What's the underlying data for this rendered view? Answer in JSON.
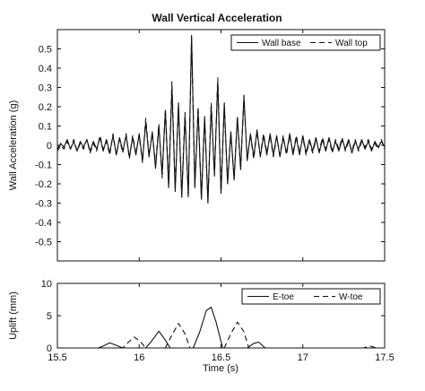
{
  "chart_data": [
    {
      "type": "line",
      "title": "Wall Vertical Acceleration",
      "xlabel": "",
      "ylabel": "Wall Acceleration (g)",
      "xlim": [
        15.5,
        17.5
      ],
      "ylim": [
        -0.6,
        0.6
      ],
      "yticks": [
        -0.5,
        -0.4,
        -0.3,
        -0.2,
        -0.1,
        0,
        0.1,
        0.2,
        0.3,
        0.4,
        0.5
      ],
      "ytick_labels": [
        "-0.5",
        "-0.4",
        "-0.3",
        "-0.2",
        "-0.1",
        "0",
        "0.1",
        "0.2",
        "0.3",
        "0.4",
        "0.5"
      ],
      "grid": false,
      "legend_position": "top-right",
      "series": [
        {
          "name": "Wall base",
          "style": "solid",
          "x": [
            15.5,
            15.52,
            15.54,
            15.56,
            15.58,
            15.6,
            15.62,
            15.64,
            15.66,
            15.68,
            15.7,
            15.72,
            15.74,
            15.76,
            15.78,
            15.8,
            15.82,
            15.84,
            15.86,
            15.88,
            15.9,
            15.92,
            15.94,
            15.96,
            15.98,
            16.0,
            16.02,
            16.04,
            16.06,
            16.08,
            16.1,
            16.12,
            16.14,
            16.16,
            16.18,
            16.2,
            16.22,
            16.24,
            16.26,
            16.28,
            16.3,
            16.32,
            16.34,
            16.36,
            16.38,
            16.4,
            16.42,
            16.44,
            16.46,
            16.48,
            16.5,
            16.52,
            16.54,
            16.56,
            16.58,
            16.6,
            16.62,
            16.64,
            16.66,
            16.68,
            16.7,
            16.72,
            16.74,
            16.76,
            16.78,
            16.8,
            16.82,
            16.84,
            16.86,
            16.88,
            16.9,
            16.92,
            16.94,
            16.96,
            16.98,
            17.0,
            17.02,
            17.04,
            17.06,
            17.08,
            17.1,
            17.12,
            17.14,
            17.16,
            17.18,
            17.2,
            17.22,
            17.24,
            17.26,
            17.28,
            17.3,
            17.32,
            17.34,
            17.36,
            17.38,
            17.4,
            17.42,
            17.44,
            17.46,
            17.48,
            17.5
          ],
          "y": [
            -0.02,
            0.01,
            -0.01,
            0.03,
            -0.02,
            0.02,
            -0.03,
            0.02,
            -0.01,
            0.03,
            -0.03,
            0.02,
            -0.02,
            0.04,
            -0.03,
            0.03,
            -0.04,
            0.05,
            -0.05,
            0.04,
            -0.03,
            0.05,
            -0.06,
            0.04,
            -0.05,
            0.06,
            -0.08,
            0.12,
            -0.06,
            0.07,
            -0.12,
            0.1,
            -0.15,
            0.18,
            -0.22,
            0.3,
            -0.24,
            0.22,
            -0.27,
            0.15,
            -0.26,
            0.57,
            -0.22,
            0.18,
            -0.28,
            0.15,
            -0.3,
            0.2,
            -0.15,
            0.33,
            -0.25,
            0.22,
            -0.2,
            0.07,
            -0.18,
            0.14,
            -0.12,
            0.25,
            -0.08,
            0.06,
            -0.06,
            0.08,
            -0.06,
            0.05,
            -0.05,
            0.06,
            -0.05,
            0.05,
            -0.06,
            0.04,
            -0.04,
            0.06,
            -0.05,
            0.04,
            -0.05,
            0.05,
            -0.04,
            0.03,
            -0.03,
            0.04,
            -0.04,
            0.03,
            -0.03,
            0.04,
            -0.03,
            0.02,
            -0.03,
            0.03,
            -0.02,
            0.03,
            -0.04,
            0.02,
            -0.02,
            0.03,
            -0.02,
            0.02,
            -0.03,
            0.02,
            -0.01,
            0.02,
            -0.01
          ]
        },
        {
          "name": "Wall top",
          "style": "dashed",
          "x": [
            15.5,
            15.52,
            15.54,
            15.56,
            15.58,
            15.6,
            15.62,
            15.64,
            15.66,
            15.68,
            15.7,
            15.72,
            15.74,
            15.76,
            15.78,
            15.8,
            15.82,
            15.84,
            15.86,
            15.88,
            15.9,
            15.92,
            15.94,
            15.96,
            15.98,
            16.0,
            16.02,
            16.04,
            16.06,
            16.08,
            16.1,
            16.12,
            16.14,
            16.16,
            16.18,
            16.2,
            16.22,
            16.24,
            16.26,
            16.28,
            16.3,
            16.32,
            16.34,
            16.36,
            16.38,
            16.4,
            16.42,
            16.44,
            16.46,
            16.48,
            16.5,
            16.52,
            16.54,
            16.56,
            16.58,
            16.6,
            16.62,
            16.64,
            16.66,
            16.68,
            16.7,
            16.72,
            16.74,
            16.76,
            16.78,
            16.8,
            16.82,
            16.84,
            16.86,
            16.88,
            16.9,
            16.92,
            16.94,
            16.96,
            16.98,
            17.0,
            17.02,
            17.04,
            17.06,
            17.08,
            17.1,
            17.12,
            17.14,
            17.16,
            17.18,
            17.2,
            17.22,
            17.24,
            17.26,
            17.28,
            17.3,
            17.32,
            17.34,
            17.36,
            17.38,
            17.4,
            17.42,
            17.44,
            17.46,
            17.48,
            17.5
          ],
          "y": [
            -0.03,
            0.0,
            -0.02,
            0.02,
            -0.02,
            0.03,
            -0.03,
            0.01,
            -0.02,
            0.03,
            -0.04,
            0.01,
            -0.03,
            0.05,
            -0.02,
            0.02,
            -0.05,
            0.06,
            -0.05,
            0.03,
            -0.04,
            0.06,
            -0.07,
            0.05,
            -0.04,
            0.05,
            -0.09,
            0.14,
            -0.05,
            0.06,
            -0.1,
            0.11,
            -0.17,
            0.19,
            -0.2,
            0.33,
            -0.22,
            0.2,
            -0.25,
            0.17,
            -0.27,
            0.56,
            -0.21,
            0.2,
            -0.27,
            0.14,
            -0.29,
            0.22,
            -0.16,
            0.35,
            -0.24,
            0.2,
            -0.19,
            0.06,
            -0.17,
            0.15,
            -0.13,
            0.26,
            -0.07,
            0.05,
            -0.07,
            0.07,
            -0.05,
            0.06,
            -0.04,
            0.05,
            -0.06,
            0.04,
            -0.05,
            0.05,
            -0.05,
            0.05,
            -0.04,
            0.05,
            -0.04,
            0.04,
            -0.05,
            0.02,
            -0.04,
            0.03,
            -0.03,
            0.04,
            -0.02,
            0.03,
            -0.04,
            0.03,
            -0.02,
            0.04,
            -0.03,
            0.02,
            -0.03,
            0.03,
            -0.03,
            0.02,
            -0.01,
            0.03,
            -0.02,
            0.01,
            -0.02,
            0.03,
            -0.02
          ]
        }
      ]
    },
    {
      "type": "line",
      "title": "",
      "xlabel": "Time (s)",
      "ylabel": "Uplift (mm)",
      "xlim": [
        15.5,
        17.5
      ],
      "ylim": [
        0,
        10
      ],
      "xticks": [
        15.5,
        16,
        16.5,
        17,
        17.5
      ],
      "xtick_labels": [
        "15.5",
        "16",
        "16.5",
        "17",
        "17.5"
      ],
      "yticks": [
        0,
        5,
        10
      ],
      "ytick_labels": [
        "0",
        "5",
        "10"
      ],
      "grid": false,
      "legend_position": "top-right",
      "series": [
        {
          "name": "E-toe",
          "style": "solid",
          "x": [
            15.5,
            15.75,
            15.78,
            15.82,
            15.86,
            15.9,
            15.93,
            16.04,
            16.08,
            16.12,
            16.16,
            16.19,
            16.33,
            16.37,
            16.41,
            16.44,
            16.47,
            16.51,
            16.66,
            16.7,
            16.73,
            16.77,
            17.5
          ],
          "y": [
            0,
            0,
            0.3,
            0.8,
            0.4,
            0,
            0,
            0,
            1.2,
            2.6,
            1.2,
            0,
            0,
            2.5,
            5.8,
            6.3,
            4.0,
            0,
            0,
            0.7,
            0.9,
            0,
            0
          ]
        },
        {
          "name": "W-toe",
          "style": "dashed",
          "x": [
            15.5,
            15.9,
            15.93,
            15.97,
            16.01,
            16.04,
            16.16,
            16.2,
            16.24,
            16.28,
            16.31,
            16.52,
            16.56,
            16.6,
            16.64,
            16.67,
            17.37,
            17.41,
            17.45,
            17.5
          ],
          "y": [
            0,
            0,
            0.8,
            1.7,
            0.9,
            0,
            0,
            2.0,
            3.8,
            2.2,
            0,
            0,
            2.2,
            4.0,
            2.5,
            0,
            0,
            0.3,
            0,
            0
          ]
        }
      ]
    }
  ]
}
